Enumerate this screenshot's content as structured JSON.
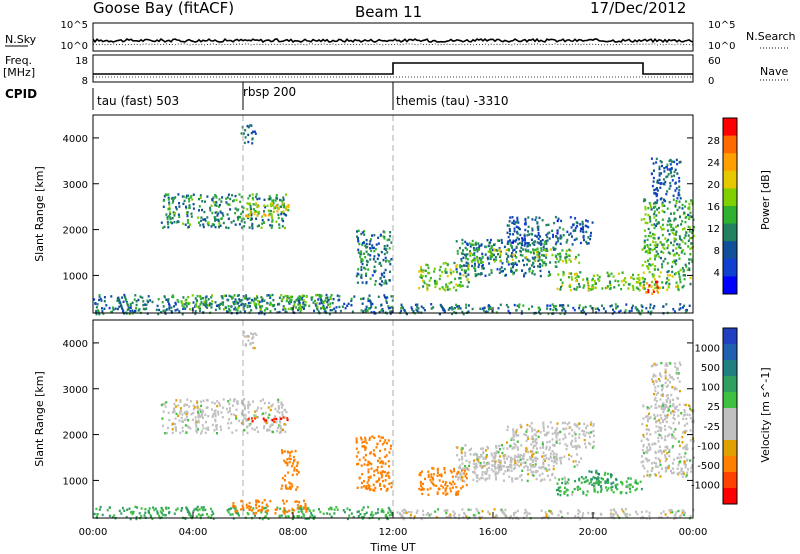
{
  "header": {
    "station": "Goose Bay (fitACF)",
    "beam": "Beam 11",
    "date": "17/Dec/2012"
  },
  "noise_panel": {
    "left_label": "N.Sky",
    "right_label": "N.Search",
    "left_ticks": [
      "10^5",
      "10^0"
    ],
    "right_ticks": [
      "10^5",
      "10^0"
    ]
  },
  "freq_panel": {
    "left_label_line1": "Freq.",
    "left_label_line2": "[MHz]",
    "right_label": "Nave",
    "left_ticks": [
      "18",
      "8"
    ],
    "right_ticks": [
      "60",
      "0"
    ]
  },
  "cpid_panel": {
    "label": "CPID",
    "segments": [
      {
        "text": "tau (fast) 503",
        "start_hour": 0
      },
      {
        "text": "rbsp 200",
        "start_hour": 6
      },
      {
        "text": "themis (tau) -3310",
        "start_hour": 12
      }
    ]
  },
  "chart_data": [
    {
      "type": "heatmap",
      "title": "",
      "quantity": "Power",
      "colorbar_label": "Power [dB]",
      "colorbar_ticks": [
        "28",
        "24",
        "20",
        "16",
        "12",
        "8",
        "4"
      ],
      "colorbar_colors": [
        "#ff0000",
        "#ff6a00",
        "#ffa000",
        "#e6c800",
        "#80d000",
        "#30b030",
        "#208060",
        "#10509a",
        "#1040d0",
        "#0000ff"
      ],
      "ylabel": "Slant Range [km]",
      "yticks": [
        1000,
        2000,
        3000,
        4000
      ],
      "ylim": [
        180,
        4500
      ],
      "xlim": [
        0,
        24
      ],
      "regions": [
        {
          "t0": 2.7,
          "t1": 7.7,
          "r0": 2050,
          "r1": 2800,
          "value": 12
        },
        {
          "t0": 6.0,
          "t1": 7.8,
          "r0": 2300,
          "r1": 2600,
          "value": 20
        },
        {
          "t0": 5.9,
          "t1": 6.5,
          "r0": 3900,
          "r1": 4300,
          "value": 8
        },
        {
          "t0": 0.0,
          "t1": 12.0,
          "r0": 180,
          "r1": 600,
          "value": 10
        },
        {
          "t0": 3.5,
          "t1": 9.5,
          "r0": 280,
          "r1": 600,
          "value": 14
        },
        {
          "t0": 10.5,
          "t1": 11.9,
          "r0": 800,
          "r1": 2000,
          "value": 10
        },
        {
          "t0": 12.1,
          "t1": 24.0,
          "r0": 180,
          "r1": 400,
          "value": 10
        },
        {
          "t0": 13.0,
          "t1": 15.0,
          "r0": 700,
          "r1": 1300,
          "value": 16
        },
        {
          "t0": 14.5,
          "t1": 18.5,
          "r0": 1000,
          "r1": 1800,
          "value": 10
        },
        {
          "t0": 15.0,
          "t1": 19.5,
          "r0": 1300,
          "r1": 1600,
          "value": 16
        },
        {
          "t0": 16.5,
          "t1": 20.0,
          "r0": 1700,
          "r1": 2300,
          "value": 8
        },
        {
          "t0": 18.5,
          "t1": 24.0,
          "r0": 700,
          "r1": 1100,
          "value": 16
        },
        {
          "t0": 21.9,
          "t1": 22.6,
          "r0": 600,
          "r1": 900,
          "value": 28
        },
        {
          "t0": 21.9,
          "t1": 24.0,
          "r0": 1100,
          "r1": 2700,
          "value": 14
        },
        {
          "t0": 22.3,
          "t1": 23.5,
          "r0": 2600,
          "r1": 3600,
          "value": 8
        }
      ]
    },
    {
      "type": "heatmap",
      "title": "",
      "quantity": "Velocity",
      "colorbar_label": "Velocity [m s^-1]",
      "colorbar_ticks": [
        "1000",
        "500",
        "100",
        "25",
        "-25",
        "-100",
        "-500",
        "-1000"
      ],
      "colorbar_colors": [
        "#2040c0",
        "#2060b0",
        "#208080",
        "#30a060",
        "#40c040",
        "#c0c0c0",
        "#c0c0c0",
        "#e0a000",
        "#ff8000",
        "#ff4000",
        "#ff0000"
      ],
      "ylabel": "Slant Range [km]",
      "yticks": [
        1000,
        2000,
        3000,
        4000
      ],
      "ylim": [
        180,
        4500
      ],
      "xlim": [
        0,
        24
      ],
      "xticks": [
        "00:00",
        "04:00",
        "08:00",
        "12:00",
        "16:00",
        "20:00",
        "00:00"
      ],
      "xlabel": "Time UT",
      "regions": [
        {
          "t0": 2.7,
          "t1": 7.7,
          "r0": 2050,
          "r1": 2800,
          "value": 0
        },
        {
          "t0": 5.9,
          "t1": 6.5,
          "r0": 3900,
          "r1": 4300,
          "value": 0
        },
        {
          "t0": 6.0,
          "t1": 7.8,
          "r0": 2300,
          "r1": 2400,
          "value": -800
        },
        {
          "t0": 0.0,
          "t1": 12.0,
          "r0": 180,
          "r1": 450,
          "value": 60
        },
        {
          "t0": 5.5,
          "t1": 8.5,
          "r0": 300,
          "r1": 600,
          "value": -150
        },
        {
          "t0": 7.5,
          "t1": 8.2,
          "r0": 800,
          "r1": 1700,
          "value": -200
        },
        {
          "t0": 10.5,
          "t1": 11.9,
          "r0": 800,
          "r1": 2000,
          "value": -150
        },
        {
          "t0": 12.1,
          "t1": 24.0,
          "r0": 180,
          "r1": 400,
          "value": 0
        },
        {
          "t0": 13.0,
          "t1": 15.0,
          "r0": 700,
          "r1": 1300,
          "value": -200
        },
        {
          "t0": 14.5,
          "t1": 18.5,
          "r0": 1000,
          "r1": 1800,
          "value": 0
        },
        {
          "t0": 15.0,
          "t1": 19.5,
          "r0": 1300,
          "r1": 1600,
          "value": 0
        },
        {
          "t0": 16.5,
          "t1": 20.0,
          "r0": 1700,
          "r1": 2300,
          "value": 0
        },
        {
          "t0": 18.5,
          "t1": 22.0,
          "r0": 700,
          "r1": 1100,
          "value": 50
        },
        {
          "t0": 19.8,
          "t1": 20.9,
          "r0": 850,
          "r1": 1250,
          "value": 80
        },
        {
          "t0": 21.9,
          "t1": 24.0,
          "r0": 1100,
          "r1": 2700,
          "value": 0
        },
        {
          "t0": 22.3,
          "t1": 23.5,
          "r0": 2600,
          "r1": 3600,
          "value": 0
        }
      ]
    }
  ]
}
